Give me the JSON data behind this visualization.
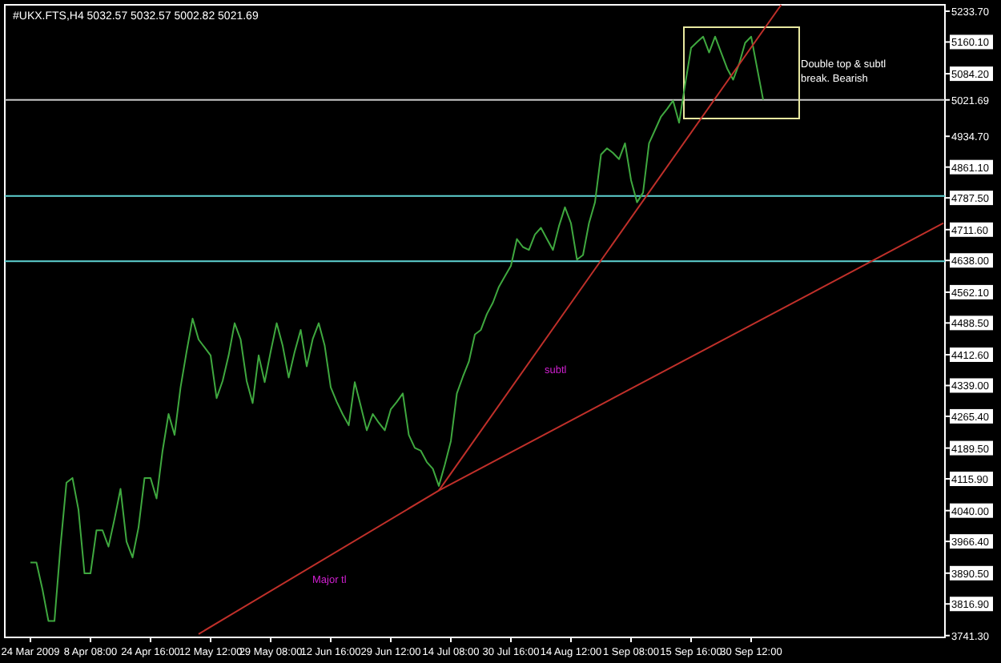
{
  "chart_data": {
    "type": "line",
    "title": "#UKX.FTS,H4  5032.57 5032.57 5002.82 5021.69",
    "categories": [
      "24 Mar 2009",
      null,
      null,
      null,
      null,
      null,
      null,
      null,
      null,
      null,
      "8 Apr 08:00",
      null,
      null,
      null,
      null,
      null,
      null,
      null,
      null,
      null,
      "24 Apr 16:00",
      null,
      null,
      null,
      null,
      null,
      null,
      null,
      null,
      null,
      "12 May 12:00",
      null,
      null,
      null,
      null,
      null,
      null,
      null,
      null,
      null,
      "29 May 08:00",
      null,
      null,
      null,
      null,
      null,
      null,
      null,
      null,
      null,
      "12 Jun 16:00",
      null,
      null,
      null,
      null,
      null,
      null,
      null,
      null,
      null,
      "29 Jun 12:00",
      null,
      null,
      null,
      null,
      null,
      null,
      null,
      null,
      null,
      "14 Jul 08:00",
      null,
      null,
      null,
      null,
      null,
      null,
      null,
      null,
      null,
      "30 Jul 16:00",
      null,
      null,
      null,
      null,
      null,
      null,
      null,
      null,
      null,
      "14 Aug 12:00",
      null,
      null,
      null,
      null,
      null,
      null,
      null,
      null,
      null,
      "1 Sep 08:00",
      null,
      null,
      null,
      null,
      null,
      null,
      null,
      null,
      null,
      "15 Sep 16:00",
      null,
      null,
      null,
      null,
      null,
      null,
      null,
      null,
      null,
      "30 Sep 12:00",
      null,
      null,
      null,
      null,
      null,
      null,
      null,
      null,
      null,
      null,
      null,
      null,
      null,
      null,
      null,
      null,
      null,
      null,
      null,
      null,
      null,
      null,
      null,
      null,
      null,
      null,
      null,
      null,
      null,
      null,
      null,
      null
    ],
    "series": [
      {
        "color": "#3fa83f",
        "values": [
          3916,
          3916,
          3852,
          3776,
          3776,
          3954,
          4107,
          4118,
          4042,
          3890,
          3890,
          3993,
          3993,
          3954,
          4020,
          4092,
          3966,
          3928,
          4000,
          4118,
          4118,
          4069,
          4183,
          4271,
          4221,
          4335,
          4420,
          4499,
          4449,
          4430,
          4411,
          4309,
          4350,
          4411,
          4488,
          4449,
          4350,
          4297,
          4411,
          4347,
          4420,
          4488,
          4434,
          4358,
          4420,
          4472,
          4385,
          4450,
          4488,
          4434,
          4335,
          4300,
          4270,
          4244,
          4347,
          4290,
          4232,
          4271,
          4250,
          4232,
          4282,
          4300,
          4320,
          4221,
          4190,
          4183,
          4156,
          4140,
          4099,
          4150,
          4206,
          4320,
          4360,
          4396,
          4461,
          4472,
          4510,
          4537,
          4575,
          4600,
          4625,
          4689,
          4670,
          4663,
          4700,
          4716,
          4689,
          4663,
          4720,
          4765,
          4727,
          4640,
          4651,
          4727,
          4777,
          4891,
          4906,
          4895,
          4880,
          4918,
          4830,
          4777,
          4800,
          4918,
          4950,
          4982,
          5000,
          5020,
          4967,
          5058,
          5146,
          5160,
          5173,
          5135,
          5173,
          5135,
          5097,
          5070,
          5108,
          5158,
          5173,
          5097,
          5022,
          null,
          null,
          null,
          null,
          null,
          null,
          null,
          null,
          null,
          null,
          null,
          null,
          null,
          null,
          null,
          null,
          null,
          null,
          null,
          null,
          null,
          null,
          null,
          null,
          null,
          null,
          null,
          null,
          null,
          null
        ]
      },
      {
        "type": "line",
        "color": "#c0302a",
        "values": [
          null,
          null,
          null,
          null,
          null,
          null,
          null,
          null,
          null,
          null,
          null,
          null,
          null,
          null,
          null,
          null,
          null,
          null,
          null,
          null,
          null,
          null,
          null,
          null,
          null,
          null,
          null,
          null,
          3745,
          null,
          null,
          null,
          null,
          null,
          null,
          null,
          null,
          null,
          null,
          null,
          null,
          null,
          null,
          null,
          null,
          null,
          null,
          null,
          null,
          null,
          null,
          null,
          null,
          null,
          null,
          null,
          null,
          null,
          null,
          null,
          null,
          null,
          null,
          null,
          null,
          null,
          null,
          null,
          4088,
          null,
          null,
          null,
          null,
          null,
          null,
          null,
          null,
          null,
          null,
          null,
          null,
          null,
          null,
          null,
          null,
          null,
          null,
          null,
          null,
          null,
          null,
          null,
          null,
          null,
          null,
          null,
          null,
          null,
          null,
          null,
          null,
          null,
          null,
          null,
          null,
          null,
          null,
          null,
          null,
          null,
          null,
          null,
          null,
          null,
          null,
          null,
          null,
          null,
          null,
          null,
          null,
          null,
          null,
          null,
          null,
          null,
          null,
          null,
          null,
          null,
          null,
          null,
          null,
          null,
          null,
          null,
          null,
          null,
          null,
          null,
          null,
          null,
          null,
          null,
          null,
          null,
          null,
          null,
          null,
          null,
          null,
          null,
          4727
        ]
      },
      {
        "type": "line",
        "color": "#c0302a",
        "values": [
          null,
          null,
          null,
          null,
          null,
          null,
          null,
          null,
          null,
          null,
          null,
          null,
          null,
          null,
          null,
          null,
          null,
          null,
          null,
          null,
          null,
          null,
          null,
          null,
          null,
          null,
          null,
          null,
          null,
          null,
          null,
          null,
          null,
          null,
          null,
          null,
          null,
          null,
          null,
          null,
          null,
          null,
          null,
          null,
          null,
          null,
          null,
          null,
          null,
          null,
          null,
          null,
          null,
          null,
          null,
          null,
          null,
          null,
          null,
          null,
          null,
          null,
          null,
          null,
          null,
          null,
          null,
          null,
          4088,
          null,
          null,
          null,
          null,
          null,
          null,
          null,
          null,
          null,
          null,
          null,
          null,
          null,
          null,
          null,
          null,
          null,
          null,
          null,
          null,
          null,
          null,
          null,
          null,
          null,
          null,
          null,
          null,
          null,
          null,
          null,
          null,
          null,
          null,
          null,
          null,
          null,
          null,
          null,
          null,
          null,
          null,
          null,
          null,
          null,
          null,
          null,
          null,
          null,
          null,
          null,
          null,
          null,
          null,
          null,
          null,
          5249,
          null,
          null,
          null,
          null,
          null,
          null,
          null,
          null,
          null,
          null,
          null,
          null,
          null,
          null,
          null,
          null,
          null,
          null,
          null,
          null,
          null,
          null,
          null,
          null,
          null,
          null,
          null
        ]
      }
    ],
    "ylim": [
      3737,
      5249
    ],
    "yticks": [
      {
        "value": 3741.3,
        "label": "3741.30"
      },
      {
        "value": 3816.9,
        "label": "3816.90"
      },
      {
        "value": 3890.5,
        "label": "3890.50"
      },
      {
        "value": 3966.4,
        "label": "3966.40"
      },
      {
        "value": 4040,
        "label": "4040.00"
      },
      {
        "value": 4115.9,
        "label": "4115.90"
      },
      {
        "value": 4189.5,
        "label": "4189.50"
      },
      {
        "value": 4265.4,
        "label": "4265.40"
      },
      {
        "value": 4339,
        "label": "4339.00"
      },
      {
        "value": 4412.6,
        "label": "4412.60"
      },
      {
        "value": 4488.5,
        "label": "4488.50"
      },
      {
        "value": 4562.1,
        "label": "4562.10"
      },
      {
        "value": 4638,
        "label": "4638.00"
      },
      {
        "value": 4711.6,
        "label": "4711.60"
      },
      {
        "value": 4787.5,
        "label": "4787.50"
      },
      {
        "value": 4861.1,
        "label": "4861.10"
      },
      {
        "value": 4934.7,
        "label": "4934.70"
      },
      {
        "value": 5021.69,
        "label": "5021.69"
      },
      {
        "value": 5084.2,
        "label": "5084.20"
      },
      {
        "value": 5160.1,
        "label": "5160.10"
      },
      {
        "value": 5233.7,
        "label": "5233.70"
      }
    ],
    "ref_lines": [
      {
        "axis": "y",
        "value": 4792,
        "color": "#5fd3d3"
      },
      {
        "axis": "y",
        "value": 4636,
        "color": "#5fd3d3"
      },
      {
        "axis": "y",
        "value": 5021.69,
        "color": "#c8c8c8"
      }
    ],
    "annotations": [
      "subtl",
      "Major tl",
      "Double top & subtl break. Bearish"
    ],
    "grid": false
  }
}
